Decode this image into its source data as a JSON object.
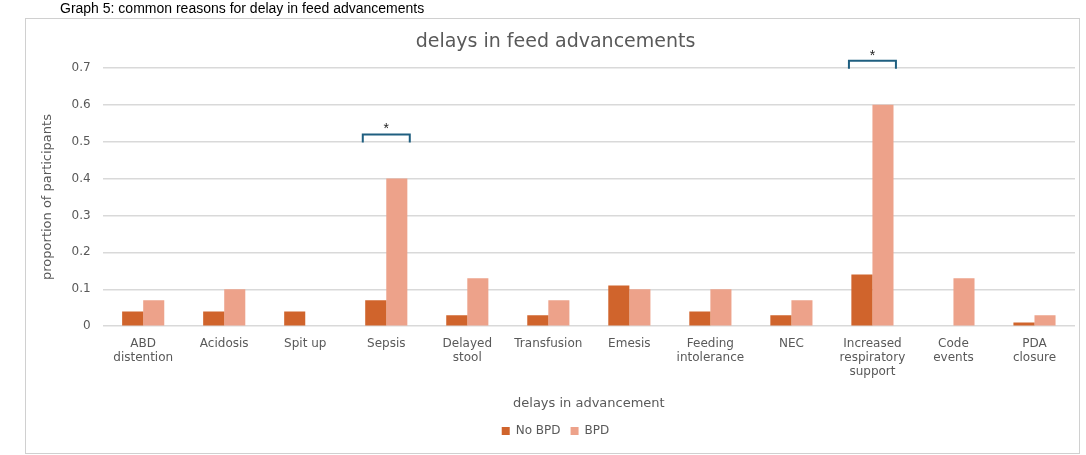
{
  "chart_data": {
    "type": "bar",
    "title": "delays in feed advancements",
    "xlabel": "delays in advancement",
    "ylabel": "proportion of participants",
    "categories": [
      "ABD distention",
      "Acidosis",
      "Spit up",
      "Sepsis",
      "Delayed stool",
      "Transfusion",
      "Emesis",
      "Feeding intolerance",
      "NEC",
      "Increased respiratory support",
      "Code events",
      "PDA closure"
    ],
    "series": [
      {
        "name": "No BPD",
        "color": "#d0642c",
        "values": [
          0.04,
          0.04,
          0.04,
          0.07,
          0.03,
          0.03,
          0.11,
          0.04,
          0.03,
          0.14,
          0,
          0.01
        ]
      },
      {
        "name": "BPD",
        "color": "#eda28a",
        "values": [
          0.07,
          0.1,
          0,
          0.4,
          0.13,
          0.07,
          0.1,
          0.1,
          0.07,
          0.6,
          0.13,
          0.03
        ]
      }
    ],
    "ylim": [
      0,
      0.7
    ],
    "yticks": [
      0,
      0.1,
      0.2,
      0.3,
      0.4,
      0.5,
      0.6,
      0.7
    ],
    "grid": "y",
    "legend": "bottom",
    "annotations": [
      "Graph 5: common reasons for delay in feed advancements",
      "*",
      "*"
    ]
  }
}
